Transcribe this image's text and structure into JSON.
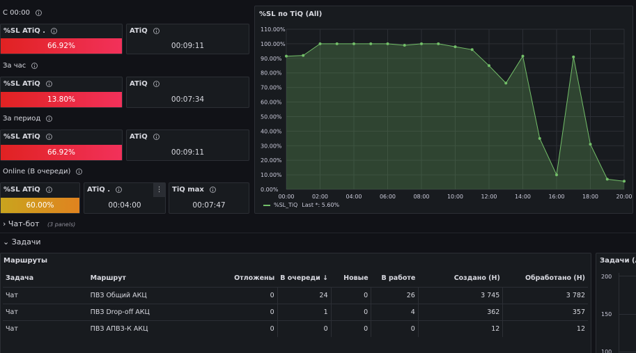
{
  "groups": {
    "since": "С 00:00",
    "hour": "За час",
    "period": "За период",
    "online": "Online (В очереди)"
  },
  "stats": {
    "since_sl": {
      "title": "%SL ATiQ .",
      "value": "66.92%"
    },
    "since_atiq": {
      "title": "ATiQ",
      "value": "00:09:11"
    },
    "hour_sl": {
      "title": "%SL ATiQ",
      "value": "13.80%"
    },
    "hour_atiq": {
      "title": "ATiQ",
      "value": "00:07:34"
    },
    "period_sl": {
      "title": "%SL ATiQ",
      "value": "66.92%"
    },
    "period_atiq": {
      "title": "ATiQ",
      "value": "00:09:11"
    },
    "online_sl": {
      "title": "%SL ATiQ",
      "value": "60.00%"
    },
    "online_atiq": {
      "title": "ATiQ .",
      "value": "00:04:00"
    },
    "online_tiqmax": {
      "title": "TiQ max",
      "value": "00:07:47"
    }
  },
  "colors": {
    "red": "#e02f44",
    "yellow": "#e0b400",
    "series": "#73bf69"
  },
  "chat_row": {
    "title": "Чат-бот",
    "sub": "(3 panels)"
  },
  "tasks_row": {
    "title": "Задачи"
  },
  "chart_data": {
    "type": "area",
    "title": "%SL по TiQ (All)",
    "x": [
      "00:00",
      "01:00",
      "02:00",
      "03:00",
      "04:00",
      "05:00",
      "06:00",
      "07:00",
      "08:00",
      "09:00",
      "10:00",
      "11:00",
      "12:00",
      "13:00",
      "14:00",
      "15:00",
      "16:00",
      "17:00",
      "18:00",
      "19:00",
      "20:00"
    ],
    "x_ticks": [
      "00:00",
      "02:00",
      "04:00",
      "06:00",
      "08:00",
      "10:00",
      "12:00",
      "14:00",
      "16:00",
      "18:00",
      "20:00"
    ],
    "y_ticks": [
      "0.00%",
      "10.00%",
      "20.00%",
      "30.00%",
      "40.00%",
      "50.00%",
      "60.00%",
      "70.00%",
      "80.00%",
      "90.00%",
      "100.00%",
      "110.00%"
    ],
    "ylim": [
      0,
      110
    ],
    "series": [
      {
        "name": "%SL_TiQ",
        "values": [
          91.5,
          92.0,
          100,
          100,
          100,
          100,
          100,
          99,
          100,
          100,
          98,
          96,
          85,
          73,
          91.5,
          35,
          10,
          91,
          31,
          7,
          5.6
        ]
      }
    ],
    "legend": {
      "label": "%SL_TiQ",
      "last": "Last *: 5.60%"
    },
    "legend_position": "bottom-left",
    "grid": true
  },
  "routes": {
    "title": "Маршруты",
    "columns": [
      "Задача",
      "Маршрут",
      "Отложены",
      "В очереди",
      "Новые",
      "В работе",
      "Создано (Н)",
      "Обработано (Н)"
    ],
    "rows": [
      [
        "Чат",
        "ПВЗ Общий АКЦ",
        "0",
        "24",
        "0",
        "26",
        "3 745",
        "3 782"
      ],
      [
        "Чат",
        "ПВЗ Drop-off АКЦ",
        "0",
        "1",
        "0",
        "4",
        "362",
        "357"
      ],
      [
        "Чат",
        "ПВЗ АПВЗ-К АКЦ",
        "0",
        "0",
        "0",
        "0",
        "12",
        "12"
      ]
    ]
  },
  "tasks_panel": {
    "title": "Задачи (All",
    "y_ticks": [
      "200",
      "150",
      "100"
    ]
  }
}
